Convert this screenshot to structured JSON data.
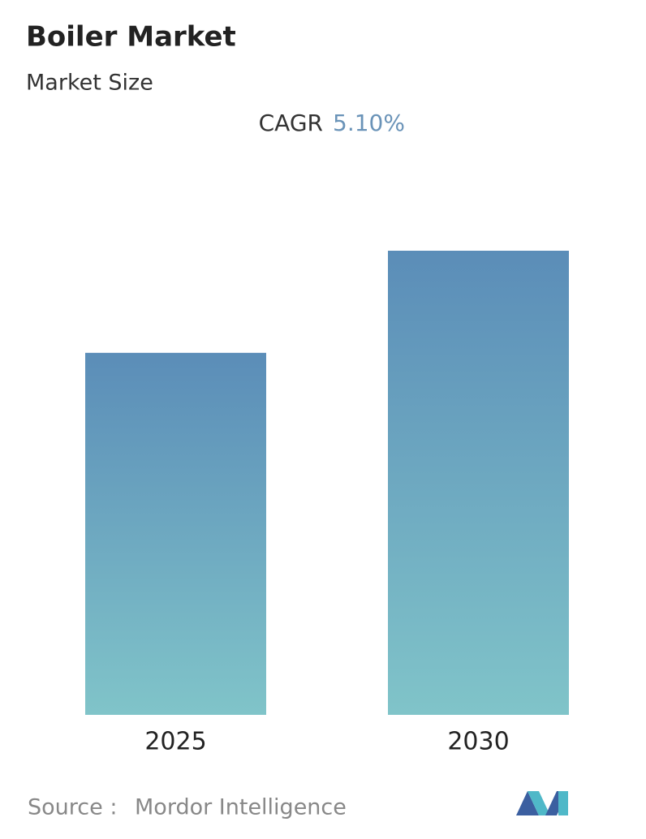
{
  "chart_data": {
    "type": "bar",
    "title": "Boiler Market",
    "subtitle": "Market Size",
    "cagr_label": "CAGR",
    "cagr_value": "5.10%",
    "categories": [
      "2025",
      "2030"
    ],
    "values": [
      78,
      100
    ],
    "ylim": [
      0,
      100
    ],
    "color_top": "#5b8db8",
    "color_bottom": "#80c4c9",
    "source_label": "Source :",
    "source": "Mordor Intelligence"
  }
}
